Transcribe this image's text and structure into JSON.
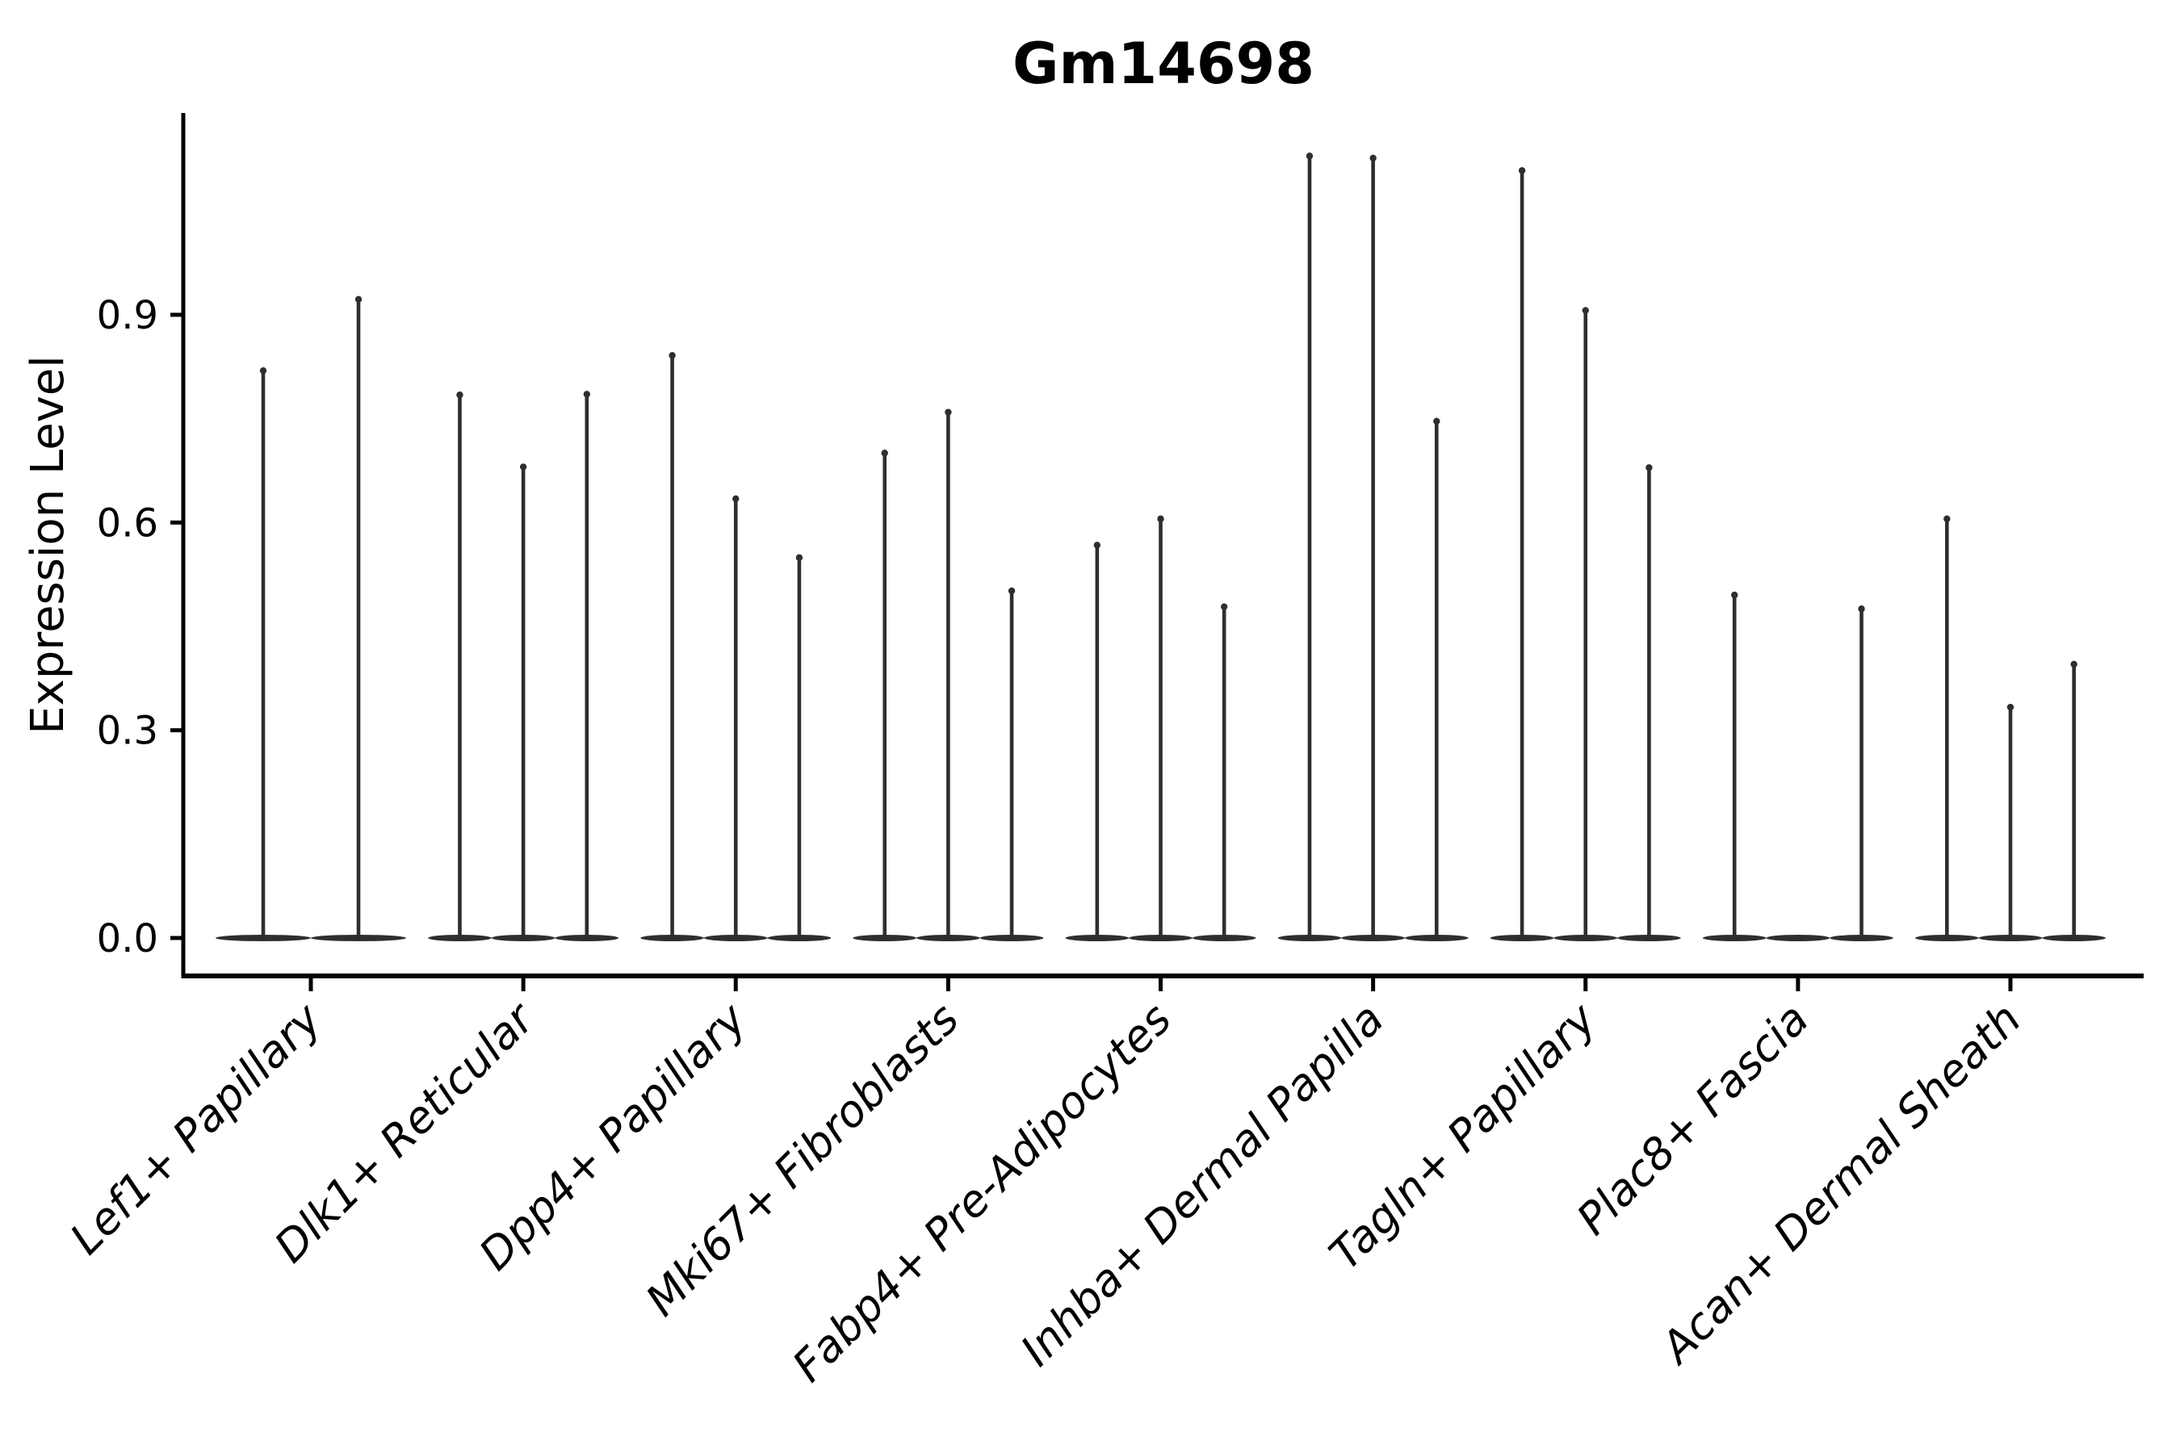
{
  "figure": {
    "title": "Gm14698",
    "y_axis_label": "Expression Level"
  },
  "colors": {
    "violin_ink": "#2e2e2e",
    "axis_ink": "#000000",
    "background": "#ffffff"
  },
  "chart_data": {
    "type": "violin",
    "title": "Gm14698",
    "xlabel": "",
    "ylabel": "Expression Level",
    "ytick_labels": [
      "0.0",
      "0.3",
      "0.6",
      "0.9"
    ],
    "ytick_values": [
      0.0,
      0.3,
      0.6,
      0.9
    ],
    "ylim": [
      -0.05,
      1.19
    ],
    "grid": false,
    "legend_position": "none",
    "x_tick_label_rotation_deg": 45,
    "x_tick_label_style": "italic",
    "categories": [
      "Lef1+ Papillary",
      "Dlk1+ Reticular",
      "Dpp4+ Papillary",
      "Mki67+ Fibroblasts",
      "Fabp4+ Pre-Adipocytes",
      "Inhba+ Dermal Papilla",
      "Tagln+ Papillary",
      "Plac8+ Fascia",
      "Acan+ Dermal Sheath"
    ],
    "violins_per_category": [
      2,
      3,
      3,
      3,
      3,
      3,
      3,
      3,
      3
    ],
    "violin_baseline_value": 0.0,
    "violin_max_values": [
      [
        0.824,
        0.927
      ],
      [
        0.789,
        0.685,
        0.79
      ],
      [
        0.846,
        0.639,
        0.554
      ],
      [
        0.705,
        0.764,
        0.506
      ],
      [
        0.572,
        0.61,
        0.483
      ],
      [
        1.134,
        1.131,
        0.751
      ],
      [
        1.113,
        0.911,
        0.684
      ],
      [
        0.5,
        0.0,
        0.48
      ],
      [
        0.61,
        0.338,
        0.4
      ]
    ]
  }
}
